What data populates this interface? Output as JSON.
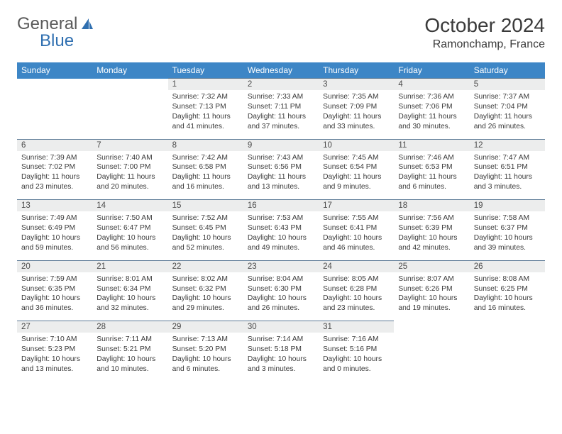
{
  "logo": {
    "text1": "General",
    "text2": "Blue"
  },
  "title": "October 2024",
  "location": "Ramonchamp, France",
  "header_bg": "#3d86c6",
  "daynum_bg": "#eceded",
  "border_color": "#5c7a96",
  "days": [
    "Sunday",
    "Monday",
    "Tuesday",
    "Wednesday",
    "Thursday",
    "Friday",
    "Saturday"
  ],
  "weeks": [
    [
      null,
      null,
      {
        "n": "1",
        "sr": "7:32 AM",
        "ss": "7:13 PM",
        "dl": "11 hours and 41 minutes."
      },
      {
        "n": "2",
        "sr": "7:33 AM",
        "ss": "7:11 PM",
        "dl": "11 hours and 37 minutes."
      },
      {
        "n": "3",
        "sr": "7:35 AM",
        "ss": "7:09 PM",
        "dl": "11 hours and 33 minutes."
      },
      {
        "n": "4",
        "sr": "7:36 AM",
        "ss": "7:06 PM",
        "dl": "11 hours and 30 minutes."
      },
      {
        "n": "5",
        "sr": "7:37 AM",
        "ss": "7:04 PM",
        "dl": "11 hours and 26 minutes."
      }
    ],
    [
      {
        "n": "6",
        "sr": "7:39 AM",
        "ss": "7:02 PM",
        "dl": "11 hours and 23 minutes."
      },
      {
        "n": "7",
        "sr": "7:40 AM",
        "ss": "7:00 PM",
        "dl": "11 hours and 20 minutes."
      },
      {
        "n": "8",
        "sr": "7:42 AM",
        "ss": "6:58 PM",
        "dl": "11 hours and 16 minutes."
      },
      {
        "n": "9",
        "sr": "7:43 AM",
        "ss": "6:56 PM",
        "dl": "11 hours and 13 minutes."
      },
      {
        "n": "10",
        "sr": "7:45 AM",
        "ss": "6:54 PM",
        "dl": "11 hours and 9 minutes."
      },
      {
        "n": "11",
        "sr": "7:46 AM",
        "ss": "6:53 PM",
        "dl": "11 hours and 6 minutes."
      },
      {
        "n": "12",
        "sr": "7:47 AM",
        "ss": "6:51 PM",
        "dl": "11 hours and 3 minutes."
      }
    ],
    [
      {
        "n": "13",
        "sr": "7:49 AM",
        "ss": "6:49 PM",
        "dl": "10 hours and 59 minutes."
      },
      {
        "n": "14",
        "sr": "7:50 AM",
        "ss": "6:47 PM",
        "dl": "10 hours and 56 minutes."
      },
      {
        "n": "15",
        "sr": "7:52 AM",
        "ss": "6:45 PM",
        "dl": "10 hours and 52 minutes."
      },
      {
        "n": "16",
        "sr": "7:53 AM",
        "ss": "6:43 PM",
        "dl": "10 hours and 49 minutes."
      },
      {
        "n": "17",
        "sr": "7:55 AM",
        "ss": "6:41 PM",
        "dl": "10 hours and 46 minutes."
      },
      {
        "n": "18",
        "sr": "7:56 AM",
        "ss": "6:39 PM",
        "dl": "10 hours and 42 minutes."
      },
      {
        "n": "19",
        "sr": "7:58 AM",
        "ss": "6:37 PM",
        "dl": "10 hours and 39 minutes."
      }
    ],
    [
      {
        "n": "20",
        "sr": "7:59 AM",
        "ss": "6:35 PM",
        "dl": "10 hours and 36 minutes."
      },
      {
        "n": "21",
        "sr": "8:01 AM",
        "ss": "6:34 PM",
        "dl": "10 hours and 32 minutes."
      },
      {
        "n": "22",
        "sr": "8:02 AM",
        "ss": "6:32 PM",
        "dl": "10 hours and 29 minutes."
      },
      {
        "n": "23",
        "sr": "8:04 AM",
        "ss": "6:30 PM",
        "dl": "10 hours and 26 minutes."
      },
      {
        "n": "24",
        "sr": "8:05 AM",
        "ss": "6:28 PM",
        "dl": "10 hours and 23 minutes."
      },
      {
        "n": "25",
        "sr": "8:07 AM",
        "ss": "6:26 PM",
        "dl": "10 hours and 19 minutes."
      },
      {
        "n": "26",
        "sr": "8:08 AM",
        "ss": "6:25 PM",
        "dl": "10 hours and 16 minutes."
      }
    ],
    [
      {
        "n": "27",
        "sr": "7:10 AM",
        "ss": "5:23 PM",
        "dl": "10 hours and 13 minutes."
      },
      {
        "n": "28",
        "sr": "7:11 AM",
        "ss": "5:21 PM",
        "dl": "10 hours and 10 minutes."
      },
      {
        "n": "29",
        "sr": "7:13 AM",
        "ss": "5:20 PM",
        "dl": "10 hours and 6 minutes."
      },
      {
        "n": "30",
        "sr": "7:14 AM",
        "ss": "5:18 PM",
        "dl": "10 hours and 3 minutes."
      },
      {
        "n": "31",
        "sr": "7:16 AM",
        "ss": "5:16 PM",
        "dl": "10 hours and 0 minutes."
      },
      null,
      null
    ]
  ],
  "labels": {
    "sunrise": "Sunrise: ",
    "sunset": "Sunset: ",
    "daylight": "Daylight: "
  }
}
